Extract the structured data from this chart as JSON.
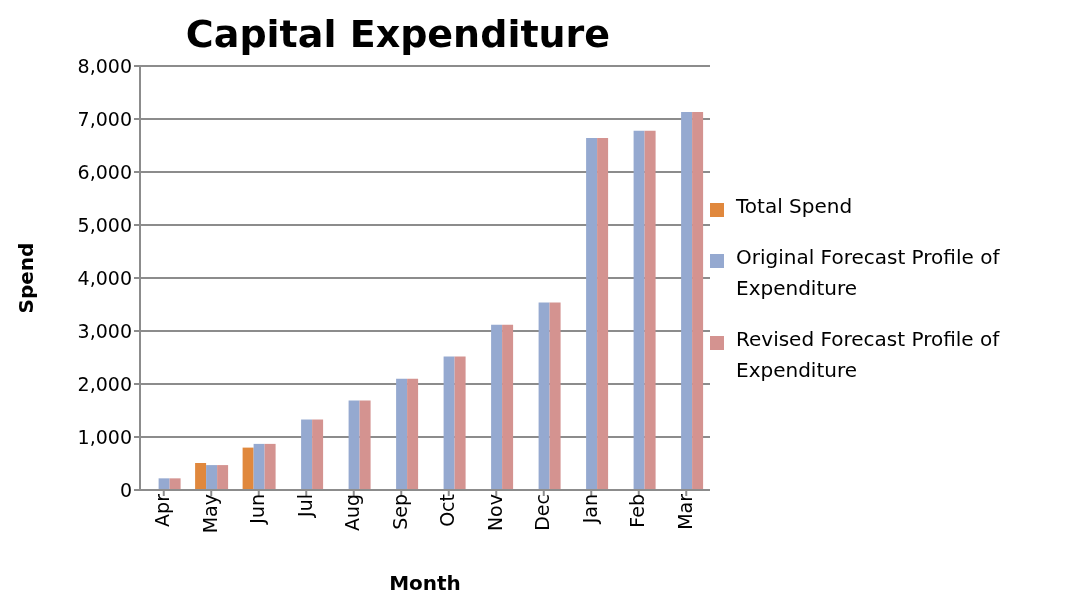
{
  "chart_data": {
    "type": "bar",
    "title": "Capital Expenditure",
    "xlabel": "Month",
    "ylabel": "Spend",
    "categories": [
      "Apr",
      "May",
      "Jun",
      "Jul",
      "Aug",
      "Sep",
      "Oct",
      "Nov",
      "Dec",
      "Jan",
      "Feb",
      "Mar"
    ],
    "series": [
      {
        "name": "Total Spend",
        "color": "#e0883d",
        "values": [
          null,
          510,
          800,
          null,
          null,
          null,
          null,
          null,
          null,
          null,
          null,
          null
        ]
      },
      {
        "name": "Original Forecast Profile of Expenditure",
        "color": "#95a9d0",
        "values": [
          220,
          470,
          870,
          1330,
          1690,
          2100,
          2520,
          3120,
          3540,
          6640,
          6780,
          7130
        ]
      },
      {
        "name": "Revised Forecast Profile of Expenditure",
        "color": "#d49390",
        "values": [
          220,
          470,
          870,
          1330,
          1690,
          2100,
          2520,
          3120,
          3540,
          6640,
          6780,
          7130
        ]
      }
    ],
    "ylim": [
      0,
      8000
    ],
    "yticks": [
      0,
      {
        "value": 1000,
        "label": "1,000"
      },
      {
        "value": 2000,
        "label": "2,000"
      },
      {
        "value": 3000,
        "label": "3,000"
      },
      {
        "value": 4000,
        "label": "4,000"
      },
      {
        "value": 5000,
        "label": "5,000"
      },
      {
        "value": 6000,
        "label": "6,000"
      },
      {
        "value": 7000,
        "label": "7,000"
      },
      {
        "value": 8000,
        "label": "8,000"
      }
    ],
    "grid": "y",
    "legend": "right"
  }
}
